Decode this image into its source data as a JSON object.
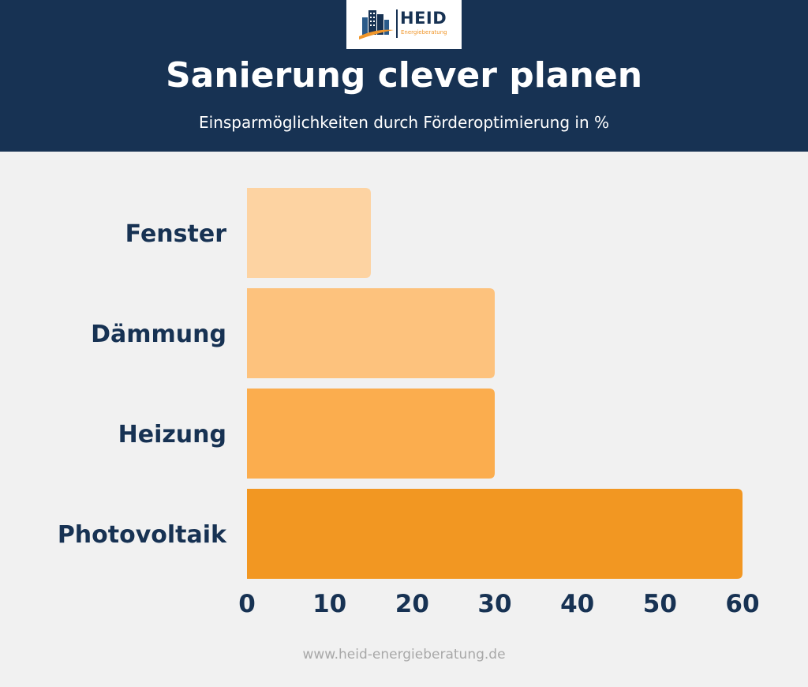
{
  "brand": {
    "name": "HEID",
    "tagline": "Energieberatung",
    "colors": {
      "navy": "#173253",
      "accent": "#f0962a"
    }
  },
  "header": {
    "title": "Sanierung clever planen",
    "subtitle": "Einsparmöglichkeiten durch Förderoptimierung in %"
  },
  "chart_data": {
    "type": "bar",
    "orientation": "horizontal",
    "categories": [
      "Fenster",
      "Dämmung",
      "Heizung",
      "Photovoltaik"
    ],
    "values": [
      15,
      30,
      30,
      60
    ],
    "bar_colors": [
      "#fdd3a2",
      "#fdc27d",
      "#fbad4e",
      "#f29722"
    ],
    "xlim": [
      0,
      60
    ],
    "xticks": [
      0,
      10,
      20,
      30,
      40,
      50,
      60
    ],
    "title": "",
    "xlabel": "",
    "ylabel": "",
    "grid": false,
    "legend": "none"
  },
  "footer": {
    "url": "www.heid-energieberatung.de"
  }
}
